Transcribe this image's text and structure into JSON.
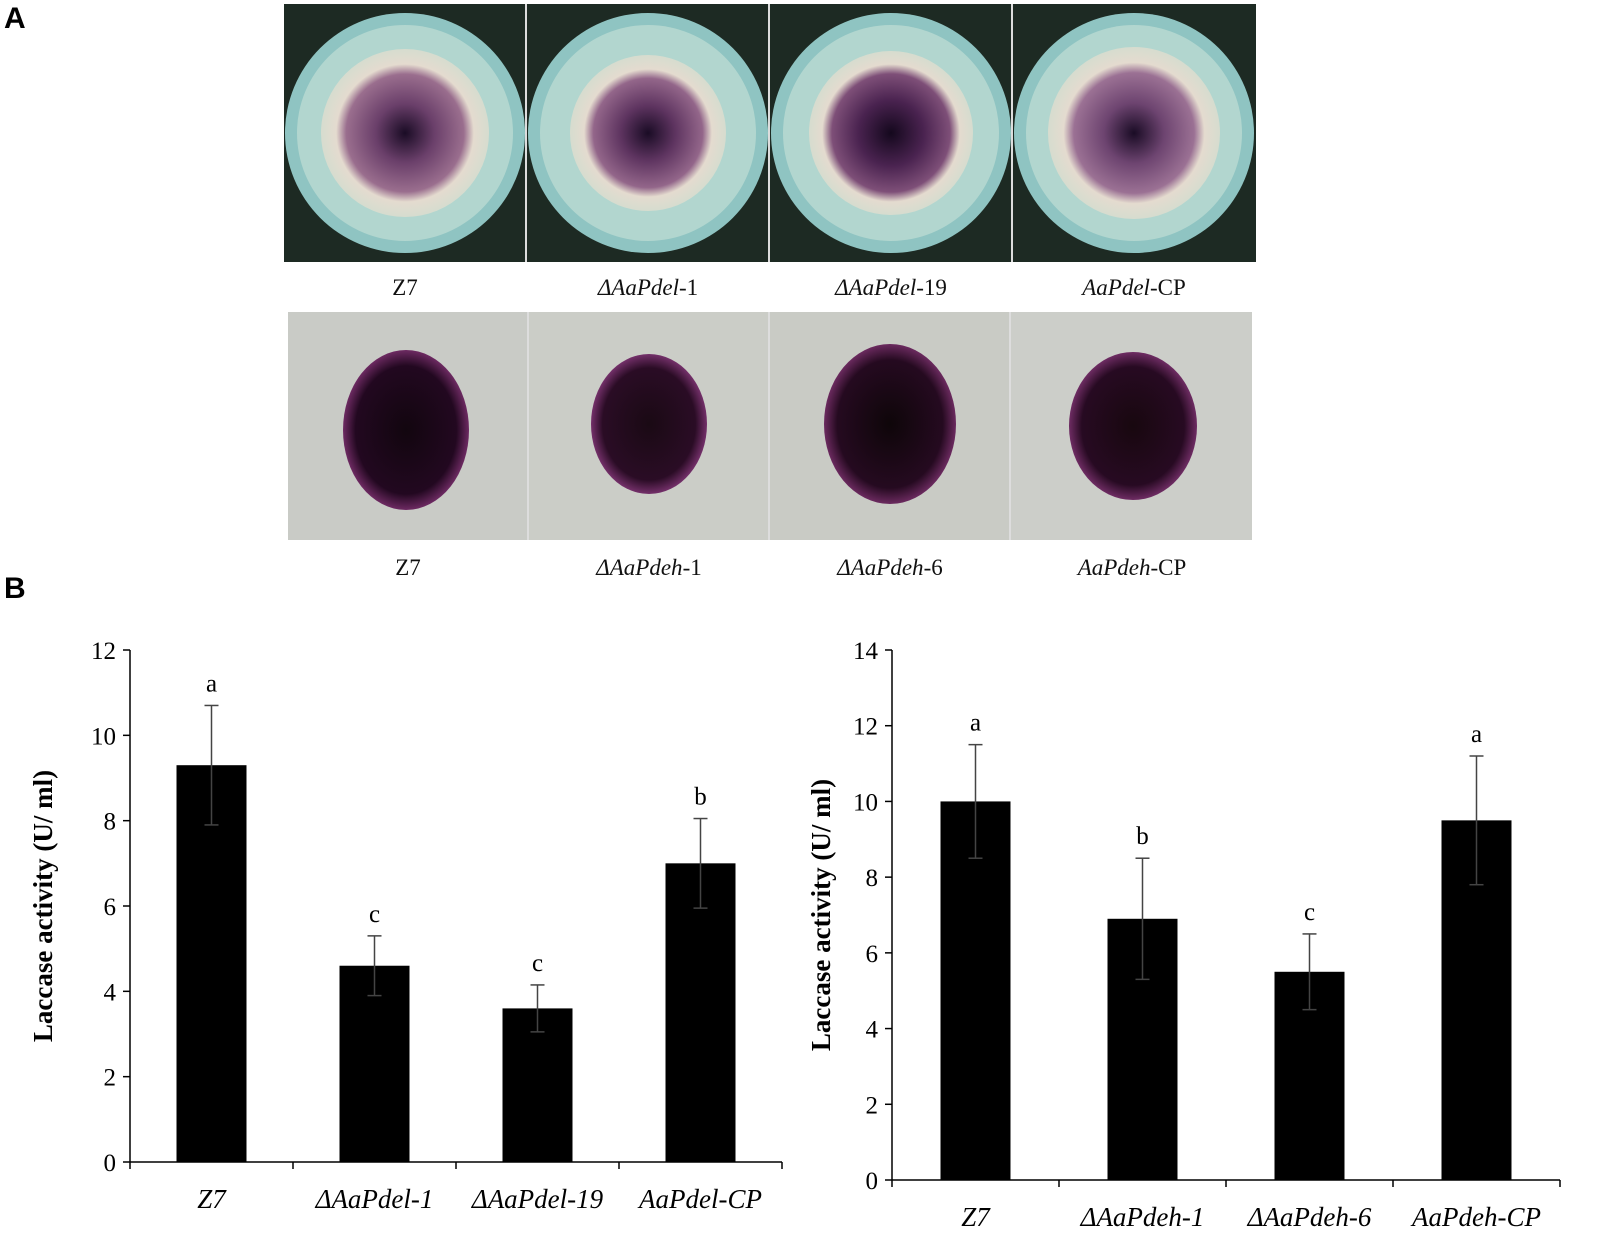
{
  "panels": {
    "a_label": "A",
    "b_label": "B"
  },
  "plates_top": {
    "captions": [
      {
        "italic": "",
        "plain": "Z7"
      },
      {
        "italic": "ΔAaPdel",
        "plain": "-1"
      },
      {
        "italic": "ΔAaPdel",
        "plain": "-19"
      },
      {
        "italic": "AaPdel",
        "plain": "-CP"
      }
    ]
  },
  "plates_bottom": {
    "captions": [
      {
        "italic": "",
        "plain": "Z7"
      },
      {
        "italic": "ΔAaPdeh",
        "plain": "-1"
      },
      {
        "italic": "ΔAaPdeh",
        "plain": "-6"
      },
      {
        "italic": "AaPdeh",
        "plain": "-CP"
      }
    ]
  },
  "chart_data": [
    {
      "type": "bar",
      "categories": [
        "Z7",
        "ΔAaPdel-1",
        "ΔAaPdel-19",
        "AaPdel-CP"
      ],
      "values": [
        9.3,
        4.6,
        3.6,
        7.0
      ],
      "errors": [
        1.4,
        0.7,
        0.55,
        1.05
      ],
      "letters": [
        "a",
        "c",
        "c",
        "b"
      ],
      "ylabel": "Laccase activity (U/ ml)",
      "ylim": [
        0,
        12
      ],
      "yticks": [
        0,
        2,
        4,
        6,
        8,
        10,
        12
      ],
      "bar_color": "#000000"
    },
    {
      "type": "bar",
      "categories": [
        "Z7",
        "ΔAaPdeh-1",
        "ΔAaPdeh-6",
        "AaPdeh-CP"
      ],
      "values": [
        10.0,
        6.9,
        5.5,
        9.5
      ],
      "errors": [
        1.5,
        1.6,
        1.0,
        1.7
      ],
      "letters": [
        "a",
        "b",
        "c",
        "a"
      ],
      "ylabel": "Laccase activity (U/ ml)",
      "ylim": [
        0,
        14
      ],
      "yticks": [
        0,
        2,
        4,
        6,
        8,
        10,
        12,
        14
      ],
      "bar_color": "#000000"
    }
  ]
}
